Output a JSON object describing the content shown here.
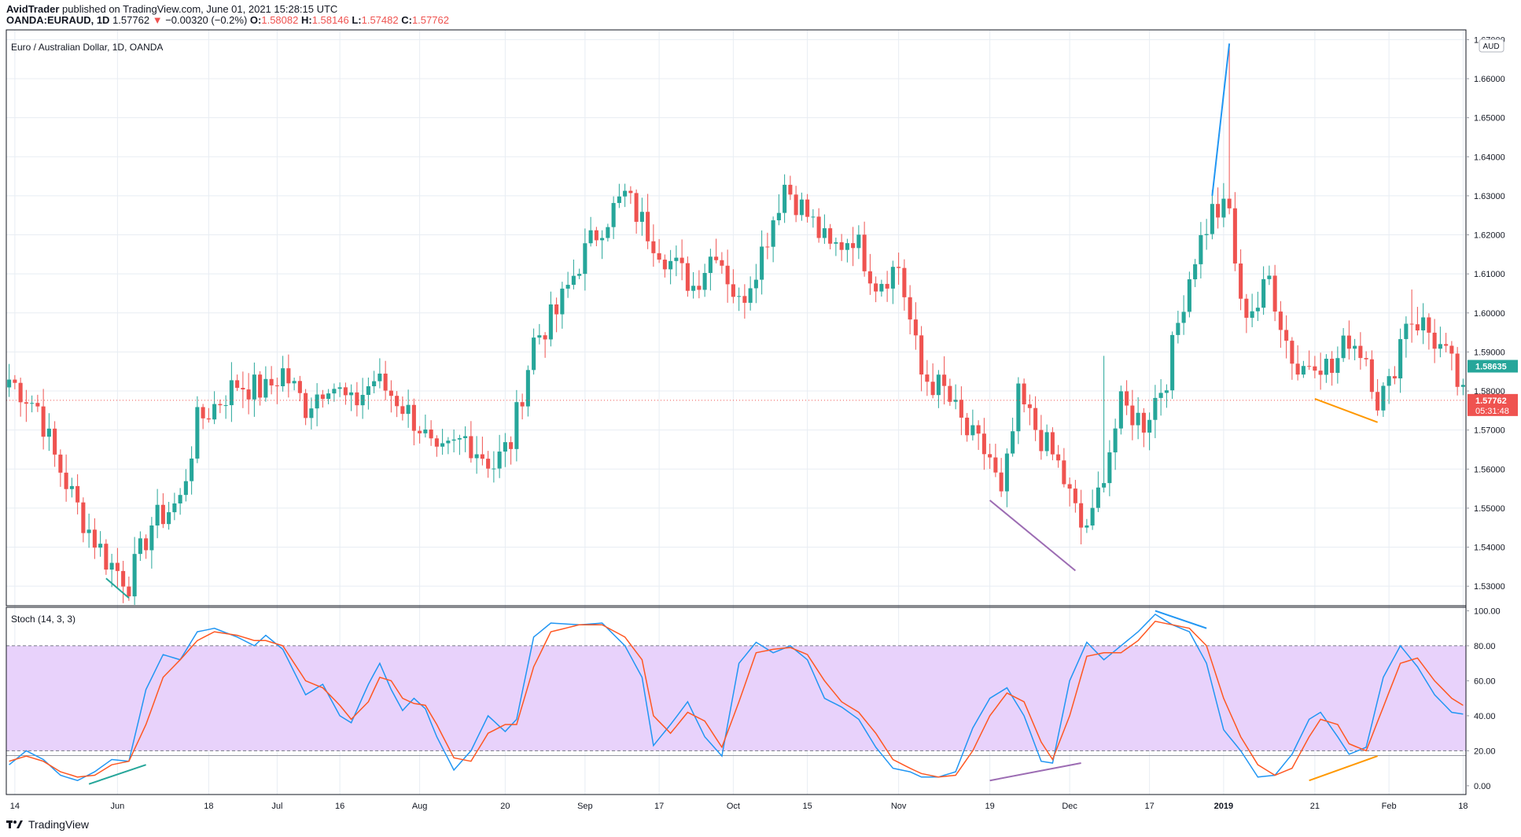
{
  "header": {
    "publisher": "AvidTrader",
    "published_text": " published on TradingView.com, June 01, 2021 15:28:15 UTC",
    "symbol": "OANDA:EURAUD, 1D",
    "last": "1.57762",
    "change": "−0.00320 (−0.2%)",
    "o_label": "O:",
    "o_val": "1.58082",
    "h_label": "H:",
    "h_val": "1.58146",
    "l_label": "L:",
    "l_val": "1.57482",
    "c_label": "C:",
    "c_val": "1.57762"
  },
  "footer": {
    "brand": "TradingView"
  },
  "colors": {
    "up": "#26a69a",
    "down": "#ef5350",
    "grid": "#e8edf3",
    "stoch_k": "#2196f3",
    "stoch_d": "#ff5722",
    "band": "#e8d2fb",
    "price_tag_current": "#ef5350",
    "price_tag_other": "#26a69a"
  },
  "chart_data": [
    {
      "type": "candlestick",
      "title": "Euro / Australian Dollar, 1D, OANDA",
      "currency_label": "AUD",
      "y_ticks": [
        "1.67000",
        "1.66000",
        "1.65000",
        "1.64000",
        "1.63000",
        "1.62000",
        "1.61000",
        "1.60000",
        "1.59000",
        "1.58000",
        "1.57000",
        "1.56000",
        "1.55000",
        "1.54000",
        "1.53000"
      ],
      "ylim": [
        1.525,
        1.6725
      ],
      "x_ticks": [
        "14",
        "Jun",
        "18",
        "Jul",
        "16",
        "Aug",
        "20",
        "Sep",
        "17",
        "Oct",
        "15",
        "Nov",
        "19",
        "Dec",
        "17",
        "2019",
        "21",
        "Feb",
        "18"
      ],
      "x_tick_bars": [
        1,
        19,
        35,
        47,
        58,
        72,
        87,
        101,
        114,
        127,
        140,
        156,
        172,
        186,
        200,
        213,
        229,
        242,
        255
      ],
      "bar_count": 256,
      "price_tags": [
        {
          "value": 1.58635,
          "text": "1.58635",
          "kind": "other"
        },
        {
          "value": 1.57762,
          "text": "1.57762",
          "kind": "current",
          "countdown": "05:31:48"
        }
      ],
      "current_price_line": 1.57762,
      "anchors": [
        [
          0,
          1.583
        ],
        [
          5,
          1.576
        ],
        [
          8,
          1.563
        ],
        [
          13,
          1.547
        ],
        [
          17,
          1.537
        ],
        [
          21,
          1.531
        ],
        [
          25,
          1.546
        ],
        [
          30,
          1.552
        ],
        [
          33,
          1.572
        ],
        [
          40,
          1.582
        ],
        [
          45,
          1.58
        ],
        [
          48,
          1.585
        ],
        [
          52,
          1.576
        ],
        [
          56,
          1.583
        ],
        [
          60,
          1.576
        ],
        [
          64,
          1.583
        ],
        [
          68,
          1.578
        ],
        [
          72,
          1.571
        ],
        [
          75,
          1.562
        ],
        [
          80,
          1.568
        ],
        [
          85,
          1.561
        ],
        [
          88,
          1.567
        ],
        [
          92,
          1.593
        ],
        [
          96,
          1.6
        ],
        [
          100,
          1.613
        ],
        [
          104,
          1.623
        ],
        [
          108,
          1.63
        ],
        [
          112,
          1.621
        ],
        [
          116,
          1.613
        ],
        [
          120,
          1.607
        ],
        [
          124,
          1.617
        ],
        [
          128,
          1.602
        ],
        [
          132,
          1.616
        ],
        [
          136,
          1.633
        ],
        [
          140,
          1.625
        ],
        [
          144,
          1.616
        ],
        [
          148,
          1.62
        ],
        [
          152,
          1.608
        ],
        [
          156,
          1.612
        ],
        [
          160,
          1.584
        ],
        [
          164,
          1.58
        ],
        [
          168,
          1.569
        ],
        [
          172,
          1.563
        ],
        [
          174,
          1.552
        ],
        [
          177,
          1.578
        ],
        [
          181,
          1.568
        ],
        [
          184,
          1.561
        ],
        [
          188,
          1.545
        ],
        [
          190,
          1.547
        ],
        [
          192,
          1.56
        ],
        [
          195,
          1.576
        ],
        [
          199,
          1.572
        ],
        [
          203,
          1.584
        ],
        [
          206,
          1.604
        ],
        [
          208,
          1.615
        ],
        [
          211,
          1.626
        ],
        [
          214,
          1.626
        ],
        [
          216,
          1.601
        ],
        [
          219,
          1.602
        ],
        [
          221,
          1.609
        ],
        [
          224,
          1.593
        ],
        [
          226,
          1.585
        ],
        [
          229,
          1.589
        ],
        [
          232,
          1.585
        ],
        [
          235,
          1.594
        ],
        [
          238,
          1.589
        ],
        [
          240,
          1.578
        ],
        [
          242,
          1.581
        ],
        [
          245,
          1.599
        ],
        [
          248,
          1.597
        ],
        [
          251,
          1.591
        ],
        [
          253,
          1.586
        ],
        [
          255,
          1.578
        ]
      ],
      "spikes": [
        {
          "bar": 214,
          "high": 1.669
        },
        {
          "bar": 246,
          "high": 1.606
        },
        {
          "bar": 192,
          "high": 1.589
        }
      ],
      "trendlines": [
        {
          "color": "#26a69a",
          "from": [
            17,
            1.532
          ],
          "to": [
            21,
            1.527
          ]
        },
        {
          "color": "#2196f3",
          "from": [
            211,
            1.63
          ],
          "to": [
            214,
            1.669
          ]
        },
        {
          "color": "#9c6cb3",
          "from": [
            172,
            1.552
          ],
          "to": [
            187,
            1.534
          ]
        },
        {
          "color": "#ff9800",
          "from": [
            229,
            1.578
          ],
          "to": [
            240,
            1.572
          ]
        }
      ]
    },
    {
      "type": "line",
      "title": "Stoch (14, 3, 3)",
      "y_ticks": [
        "100.00",
        "80.00",
        "60.00",
        "40.00",
        "20.00",
        "0.00"
      ],
      "ylim": [
        -5,
        102
      ],
      "bands": [
        20,
        80
      ],
      "series": [
        {
          "id": "k",
          "anchors": [
            [
              0,
              12
            ],
            [
              3,
              20
            ],
            [
              6,
              15
            ],
            [
              9,
              6
            ],
            [
              12,
              3
            ],
            [
              15,
              8
            ],
            [
              18,
              15
            ],
            [
              21,
              14
            ],
            [
              24,
              55
            ],
            [
              27,
              75
            ],
            [
              30,
              72
            ],
            [
              33,
              88
            ],
            [
              36,
              90
            ],
            [
              40,
              85
            ],
            [
              43,
              80
            ],
            [
              45,
              86
            ],
            [
              48,
              78
            ],
            [
              52,
              52
            ],
            [
              55,
              58
            ],
            [
              58,
              40
            ],
            [
              60,
              36
            ],
            [
              63,
              58
            ],
            [
              65,
              70
            ],
            [
              67,
              55
            ],
            [
              69,
              43
            ],
            [
              71,
              50
            ],
            [
              73,
              44
            ],
            [
              75,
              28
            ],
            [
              78,
              9
            ],
            [
              81,
              20
            ],
            [
              84,
              40
            ],
            [
              87,
              31
            ],
            [
              89,
              38
            ],
            [
              92,
              85
            ],
            [
              95,
              93
            ],
            [
              100,
              92
            ],
            [
              104,
              93
            ],
            [
              108,
              80
            ],
            [
              111,
              62
            ],
            [
              113,
              23
            ],
            [
              116,
              35
            ],
            [
              119,
              48
            ],
            [
              122,
              28
            ],
            [
              125,
              17
            ],
            [
              128,
              70
            ],
            [
              131,
              82
            ],
            [
              134,
              76
            ],
            [
              137,
              80
            ],
            [
              140,
              72
            ],
            [
              143,
              50
            ],
            [
              146,
              45
            ],
            [
              149,
              38
            ],
            [
              152,
              22
            ],
            [
              155,
              10
            ],
            [
              158,
              8
            ],
            [
              160,
              5
            ],
            [
              163,
              5
            ],
            [
              166,
              8
            ],
            [
              169,
              33
            ],
            [
              172,
              50
            ],
            [
              175,
              56
            ],
            [
              178,
              40
            ],
            [
              181,
              14
            ],
            [
              183,
              13
            ],
            [
              186,
              60
            ],
            [
              189,
              82
            ],
            [
              192,
              72
            ],
            [
              195,
              80
            ],
            [
              198,
              88
            ],
            [
              201,
              98
            ],
            [
              204,
              92
            ],
            [
              207,
              88
            ],
            [
              210,
              70
            ],
            [
              213,
              32
            ],
            [
              216,
              20
            ],
            [
              219,
              5
            ],
            [
              222,
              6
            ],
            [
              225,
              18
            ],
            [
              228,
              38
            ],
            [
              230,
              42
            ],
            [
              233,
              28
            ],
            [
              235,
              18
            ],
            [
              238,
              22
            ],
            [
              241,
              62
            ],
            [
              244,
              80
            ],
            [
              247,
              68
            ],
            [
              250,
              52
            ],
            [
              253,
              42
            ],
            [
              255,
              41
            ]
          ]
        },
        {
          "id": "d",
          "anchors": [
            [
              0,
              14
            ],
            [
              3,
              17
            ],
            [
              6,
              14
            ],
            [
              9,
              8
            ],
            [
              12,
              5
            ],
            [
              15,
              6
            ],
            [
              18,
              12
            ],
            [
              21,
              14
            ],
            [
              24,
              35
            ],
            [
              27,
              62
            ],
            [
              30,
              72
            ],
            [
              33,
              83
            ],
            [
              36,
              88
            ],
            [
              40,
              86
            ],
            [
              43,
              83
            ],
            [
              45,
              83
            ],
            [
              48,
              80
            ],
            [
              52,
              60
            ],
            [
              55,
              56
            ],
            [
              58,
              46
            ],
            [
              60,
              38
            ],
            [
              63,
              48
            ],
            [
              65,
              62
            ],
            [
              67,
              60
            ],
            [
              69,
              50
            ],
            [
              71,
              47
            ],
            [
              73,
              46
            ],
            [
              75,
              35
            ],
            [
              78,
              16
            ],
            [
              81,
              14
            ],
            [
              84,
              30
            ],
            [
              87,
              35
            ],
            [
              89,
              35
            ],
            [
              92,
              68
            ],
            [
              95,
              88
            ],
            [
              100,
              92
            ],
            [
              104,
              92
            ],
            [
              108,
              85
            ],
            [
              111,
              72
            ],
            [
              113,
              40
            ],
            [
              116,
              30
            ],
            [
              119,
              42
            ],
            [
              122,
              37
            ],
            [
              125,
              22
            ],
            [
              128,
              48
            ],
            [
              131,
              76
            ],
            [
              134,
              78
            ],
            [
              137,
              79
            ],
            [
              140,
              75
            ],
            [
              143,
              60
            ],
            [
              146,
              48
            ],
            [
              149,
              42
            ],
            [
              152,
              30
            ],
            [
              155,
              15
            ],
            [
              158,
              10
            ],
            [
              160,
              7
            ],
            [
              163,
              5
            ],
            [
              166,
              6
            ],
            [
              169,
              20
            ],
            [
              172,
              40
            ],
            [
              175,
              53
            ],
            [
              178,
              48
            ],
            [
              181,
              25
            ],
            [
              183,
              15
            ],
            [
              186,
              40
            ],
            [
              189,
              74
            ],
            [
              192,
              76
            ],
            [
              195,
              76
            ],
            [
              198,
              83
            ],
            [
              201,
              94
            ],
            [
              204,
              92
            ],
            [
              207,
              90
            ],
            [
              210,
              80
            ],
            [
              213,
              50
            ],
            [
              216,
              28
            ],
            [
              219,
              12
            ],
            [
              222,
              6
            ],
            [
              225,
              10
            ],
            [
              228,
              28
            ],
            [
              230,
              38
            ],
            [
              233,
              35
            ],
            [
              235,
              24
            ],
            [
              238,
              20
            ],
            [
              241,
              45
            ],
            [
              244,
              70
            ],
            [
              247,
              73
            ],
            [
              250,
              60
            ],
            [
              253,
              50
            ],
            [
              255,
              46
            ]
          ]
        }
      ],
      "trendlines": [
        {
          "color": "#26a69a",
          "from": [
            14,
            1
          ],
          "to": [
            24,
            12
          ]
        },
        {
          "color": "#2196f3",
          "from": [
            201,
            100
          ],
          "to": [
            210,
            90
          ]
        },
        {
          "color": "#9c6cb3",
          "from": [
            172,
            3
          ],
          "to": [
            188,
            13
          ]
        },
        {
          "color": "#ff9800",
          "from": [
            228,
            3
          ],
          "to": [
            240,
            17
          ]
        }
      ]
    }
  ]
}
